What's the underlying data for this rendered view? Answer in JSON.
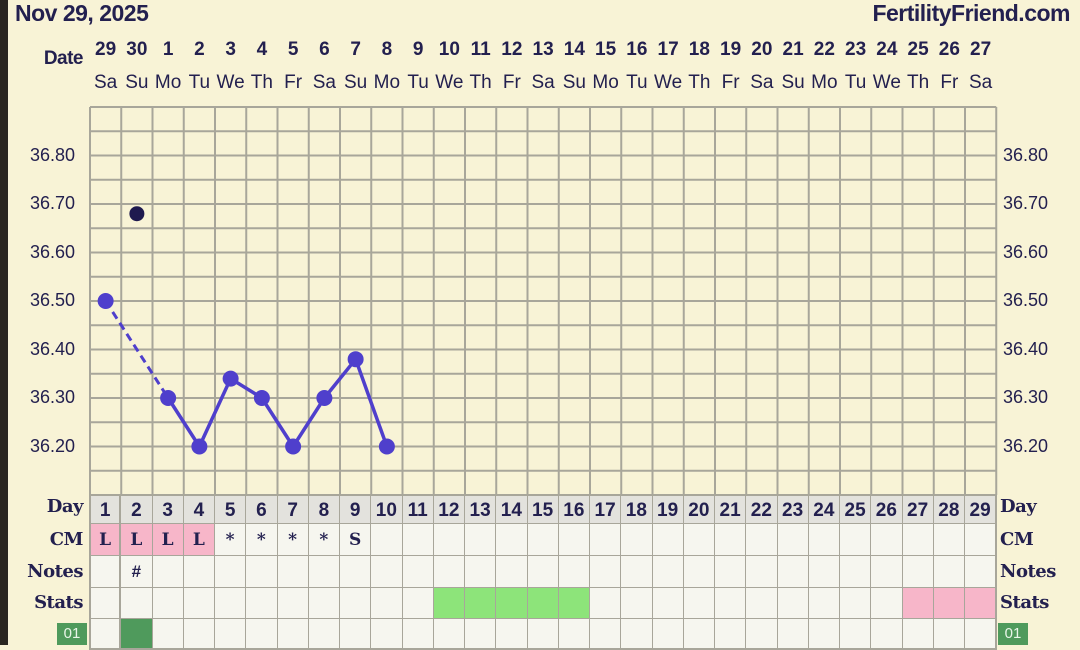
{
  "header": {
    "date": "Nov 29, 2025",
    "brand": "FertilityFriend.com"
  },
  "labels": {
    "date": "Date",
    "day": "Day",
    "cm": "CM",
    "notes": "Notes",
    "stats": "Stats",
    "badge": "01"
  },
  "dates": [
    "29",
    "30",
    "1",
    "2",
    "3",
    "4",
    "5",
    "6",
    "7",
    "8",
    "9",
    "10",
    "11",
    "12",
    "13",
    "14",
    "15",
    "16",
    "17",
    "18",
    "19",
    "20",
    "21",
    "22",
    "23",
    "24",
    "25",
    "26",
    "27"
  ],
  "weekdays": [
    "Sa",
    "Su",
    "Mo",
    "Tu",
    "We",
    "Th",
    "Fr",
    "Sa",
    "Su",
    "Mo",
    "Tu",
    "We",
    "Th",
    "Fr",
    "Sa",
    "Su",
    "Mo",
    "Tu",
    "We",
    "Th",
    "Fr",
    "Sa",
    "Su",
    "Mo",
    "Tu",
    "We",
    "Th",
    "Fr",
    "Sa"
  ],
  "days": [
    "1",
    "2",
    "3",
    "4",
    "5",
    "6",
    "7",
    "8",
    "9",
    "10",
    "11",
    "12",
    "13",
    "14",
    "15",
    "16",
    "17",
    "18",
    "19",
    "20",
    "21",
    "22",
    "23",
    "24",
    "25",
    "26",
    "27",
    "28",
    "29"
  ],
  "cm": [
    "L",
    "L",
    "L",
    "L",
    "*",
    "*",
    "*",
    "*",
    "S",
    "",
    "",
    "",
    "",
    "",
    "",
    "",
    "",
    "",
    "",
    "",
    "",
    "",
    "",
    "",
    "",
    "",
    "",
    "",
    ""
  ],
  "cm_pink_days": [
    1,
    2,
    3,
    4
  ],
  "notes": [
    "",
    "#",
    "",
    "",
    "",
    "",
    "",
    "",
    "",
    "",
    "",
    "",
    "",
    "",
    "",
    "",
    "",
    "",
    "",
    "",
    "",
    "",
    "",
    "",
    "",
    "",
    "",
    "",
    ""
  ],
  "stats_green_days": [
    12,
    13,
    14,
    15,
    16
  ],
  "stats_pink_days": [
    27,
    28,
    29
  ],
  "bottom_green_days": [
    2
  ],
  "colors": {
    "line": "#4f3fcc",
    "outlier": "#1f1a4f",
    "pink": "#f7b6c9",
    "green": "#8de47a",
    "darkgreen": "#4f9a5c",
    "dayrow": "#e3e2dd",
    "cell": "#f6f6ef",
    "bg": "#f8f3d6"
  },
  "chart_data": {
    "type": "line",
    "ylim": [
      36.1,
      36.9
    ],
    "yticks": [
      "36.80",
      "36.70",
      "36.60",
      "36.50",
      "36.40",
      "36.30",
      "36.20"
    ],
    "series": [
      {
        "days": [
          1,
          3,
          4,
          5,
          6,
          7,
          8,
          9,
          10
        ],
        "values": [
          36.5,
          36.3,
          36.2,
          36.34,
          36.3,
          36.2,
          36.3,
          36.38,
          36.2
        ],
        "dashed_segment": [
          1,
          3
        ]
      }
    ],
    "outliers": [
      {
        "day": 2,
        "value": 36.68
      }
    ]
  }
}
